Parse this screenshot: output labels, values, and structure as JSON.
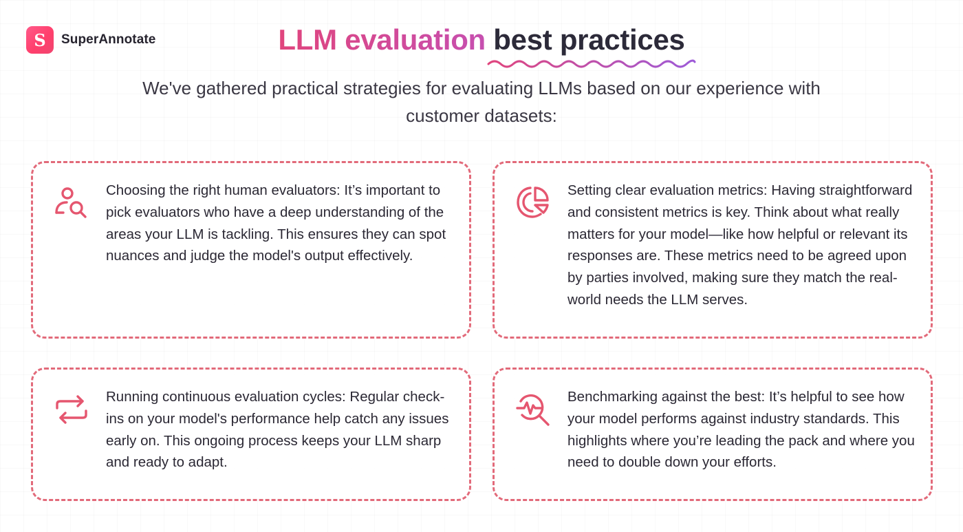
{
  "brand": {
    "logo_letter": "S",
    "name": "SuperAnnotate"
  },
  "header": {
    "title_highlight": "LLM evaluation",
    "title_rest": "best practices",
    "subtitle": "We've gathered practical strategies for evaluating LLMs based on our experience with customer datasets:"
  },
  "colors": {
    "accent_pink": "#e0457d",
    "accent_purple": "#c64fb0",
    "card_border": "#e26a7a",
    "icon": "#e5566f"
  },
  "cards": [
    {
      "icon": "user-search-icon",
      "text": "Choosing the right human evaluators: It’s important to pick evaluators who have a deep understanding of the areas your LLM is tackling. This ensures they can spot nuances and judge the model's output effectively."
    },
    {
      "icon": "pie-chart-icon",
      "text": "Setting clear evaluation metrics: Having straightforward and consistent metrics is key. Think about what really matters for your model—like how helpful or relevant its responses are. These metrics need to be agreed upon by parties involved, making sure they match the real-world needs the LLM serves."
    },
    {
      "icon": "repeat-arrows-icon",
      "text": "Running continuous evaluation cycles: Regular check-ins on your model's performance help catch any issues early on. This ongoing process keeps your LLM sharp and ready to adapt."
    },
    {
      "icon": "benchmark-search-icon",
      "text": "Benchmarking against the best: It’s helpful to see how your model performs against industry standards. This highlights where you’re leading the pack and where you need to double down your efforts."
    }
  ]
}
